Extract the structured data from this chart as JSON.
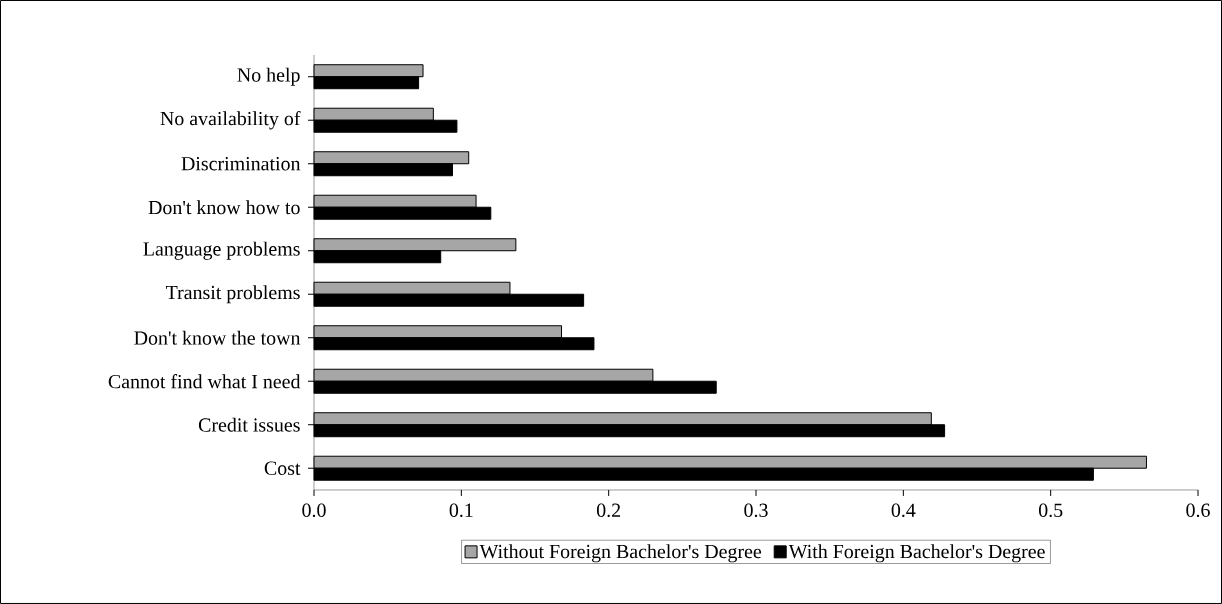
{
  "chart_data": {
    "type": "bar",
    "orientation": "horizontal",
    "categories": [
      "No help",
      "No availability of",
      "Discrimination",
      "Don't know how to",
      "Language problems",
      "Transit problems",
      "Don't know the town",
      "Cannot find what I need",
      "Credit issues",
      "Cost"
    ],
    "series": [
      {
        "name": "Without Foreign Bachelor's Degree",
        "color": "#a6a6a6",
        "values": [
          0.074,
          0.081,
          0.105,
          0.11,
          0.137,
          0.133,
          0.168,
          0.23,
          0.419,
          0.565
        ]
      },
      {
        "name": "With Foreign Bachelor's Degree",
        "color": "#000000",
        "values": [
          0.071,
          0.097,
          0.094,
          0.12,
          0.086,
          0.183,
          0.19,
          0.273,
          0.428,
          0.529
        ]
      }
    ],
    "xlim": [
      0,
      0.6
    ],
    "xticks": [
      {
        "value": 0,
        "label": "0.0"
      },
      {
        "value": 0.1,
        "label": "0.1"
      },
      {
        "value": 0.2,
        "label": "0.2"
      },
      {
        "value": 0.3,
        "label": "0.3"
      },
      {
        "value": 0.4,
        "label": "0.4"
      },
      {
        "value": 0.5,
        "label": "0.5"
      },
      {
        "value": 0.6,
        "label": "0.6"
      }
    ],
    "grid": false,
    "legend": "bottom"
  }
}
